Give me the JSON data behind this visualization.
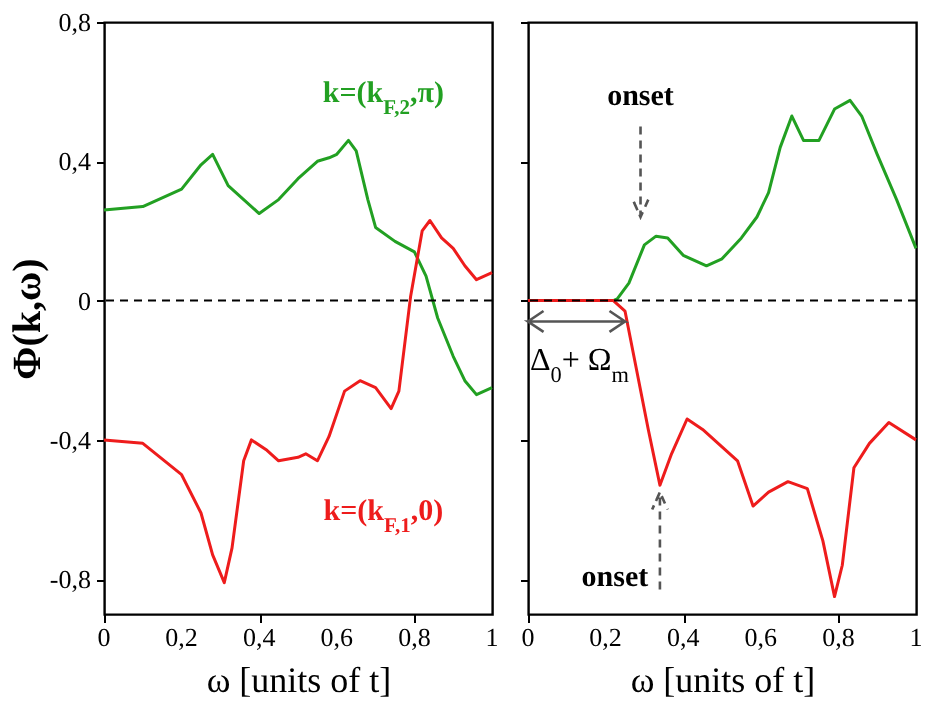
{
  "chart_data": [
    {
      "type": "line",
      "ylabel": "Φ(k,ω)",
      "xlabel": "ω [units of t]",
      "xlim": [
        0,
        1
      ],
      "ylim": [
        -0.9,
        0.8
      ],
      "xticks": [
        {
          "value": 0,
          "label": "0"
        },
        {
          "value": 0.2,
          "label": "0,2"
        },
        {
          "value": 0.4,
          "label": "0,4"
        },
        {
          "value": 0.6,
          "label": "0,6"
        },
        {
          "value": 0.8,
          "label": "0,8"
        },
        {
          "value": 1,
          "label": "1"
        }
      ],
      "yticks": [
        {
          "value": -0.8,
          "label": "-0,8"
        },
        {
          "value": -0.4,
          "label": "-0,4"
        },
        0,
        {
          "value": 0.4,
          "label": "0,4"
        },
        {
          "value": 0.8,
          "label": "0,8"
        }
      ],
      "ref_lines": [
        {
          "axis": "y",
          "value": 0,
          "line_style": "dashed"
        }
      ],
      "series": [
        {
          "name": "k=(k$_{F,2}$,π)",
          "color": "#22a022",
          "x": [
            0,
            0.1,
            0.2,
            0.25,
            0.28,
            0.32,
            0.35,
            0.4,
            0.45,
            0.5,
            0.55,
            0.58,
            0.6,
            0.63,
            0.65,
            0.68,
            0.7,
            0.75,
            0.8,
            0.83,
            0.86,
            0.9,
            0.93,
            0.96,
            1
          ],
          "values": [
            0.26,
            0.27,
            0.32,
            0.39,
            0.42,
            0.33,
            0.3,
            0.25,
            0.29,
            0.35,
            0.4,
            0.41,
            0.42,
            0.46,
            0.43,
            0.29,
            0.21,
            0.17,
            0.14,
            0.07,
            -0.05,
            -0.16,
            -0.23,
            -0.27,
            -0.25
          ]
        },
        {
          "name": "k=(k$_{F,1}$,0)",
          "color": "#ee1c1c",
          "x": [
            0,
            0.1,
            0.2,
            0.25,
            0.28,
            0.31,
            0.33,
            0.36,
            0.38,
            0.42,
            0.45,
            0.5,
            0.52,
            0.55,
            0.58,
            0.62,
            0.66,
            0.7,
            0.74,
            0.76,
            0.79,
            0.82,
            0.84,
            0.87,
            0.9,
            0.93,
            0.96,
            1
          ],
          "values": [
            -0.4,
            -0.41,
            -0.5,
            -0.61,
            -0.73,
            -0.81,
            -0.71,
            -0.46,
            -0.4,
            -0.43,
            -0.46,
            -0.45,
            -0.44,
            -0.46,
            -0.39,
            -0.26,
            -0.23,
            -0.25,
            -0.31,
            -0.26,
            0.01,
            0.2,
            0.23,
            0.18,
            0.15,
            0.1,
            0.06,
            0.08
          ]
        }
      ]
    },
    {
      "type": "line",
      "xlabel": "ω [units of t]",
      "xlim": [
        0,
        1
      ],
      "ylim": [
        -0.9,
        0.8
      ],
      "tick_labels": "x",
      "xticks": [
        {
          "value": 0,
          "label": "0"
        },
        {
          "value": 0.2,
          "label": "0,2"
        },
        {
          "value": 0.4,
          "label": "0,4"
        },
        {
          "value": 0.6,
          "label": "0,6"
        },
        {
          "value": 0.8,
          "label": "0,8"
        },
        {
          "value": 1,
          "label": "1"
        }
      ],
      "yticks": [
        {
          "value": -0.8,
          "label": null
        },
        {
          "value": -0.4,
          "label": null
        },
        {
          "value": 0,
          "label": null
        },
        {
          "value": 0.4,
          "label": null
        },
        {
          "value": 0.8,
          "label": null
        }
      ],
      "ref_lines": [
        {
          "axis": "y",
          "value": 0,
          "line_style": "dashed"
        }
      ],
      "annotations": [
        "onset",
        {
          "text": "onset",
          "x": 0.34,
          "y": -0.53
        },
        {
          "text": "Δ$_{0}$+ Ω$_{m}$",
          "x": 0.25,
          "y": 0
        }
      ],
      "series": [
        {
          "color": "#22a022",
          "x": [
            0,
            0.1,
            0.22,
            0.23,
            0.26,
            0.3,
            0.33,
            0.36,
            0.4,
            0.46,
            0.5,
            0.55,
            0.59,
            0.62,
            0.65,
            0.68,
            0.71,
            0.75,
            0.79,
            0.83,
            0.86,
            0.9,
            0.95,
            1
          ],
          "values": [
            0,
            0,
            0,
            0.005,
            0.05,
            0.16,
            0.185,
            0.18,
            0.13,
            0.1,
            0.12,
            0.18,
            0.24,
            0.31,
            0.44,
            0.53,
            0.46,
            0.46,
            0.55,
            0.575,
            0.53,
            0.42,
            0.29,
            0.15
          ]
        },
        {
          "color": "#ee1c1c",
          "x": [
            0,
            0.1,
            0.22,
            0.25,
            0.28,
            0.31,
            0.34,
            0.37,
            0.41,
            0.45,
            0.5,
            0.54,
            0.58,
            0.62,
            0.67,
            0.72,
            0.76,
            0.79,
            0.81,
            0.84,
            0.88,
            0.93,
            1
          ],
          "values": [
            0,
            0,
            0,
            -0.03,
            -0.2,
            -0.37,
            -0.53,
            -0.44,
            -0.34,
            -0.37,
            -0.42,
            -0.46,
            -0.59,
            -0.55,
            -0.52,
            -0.54,
            -0.69,
            -0.85,
            -0.76,
            -0.48,
            -0.41,
            -0.35,
            -0.4
          ]
        }
      ]
    }
  ]
}
